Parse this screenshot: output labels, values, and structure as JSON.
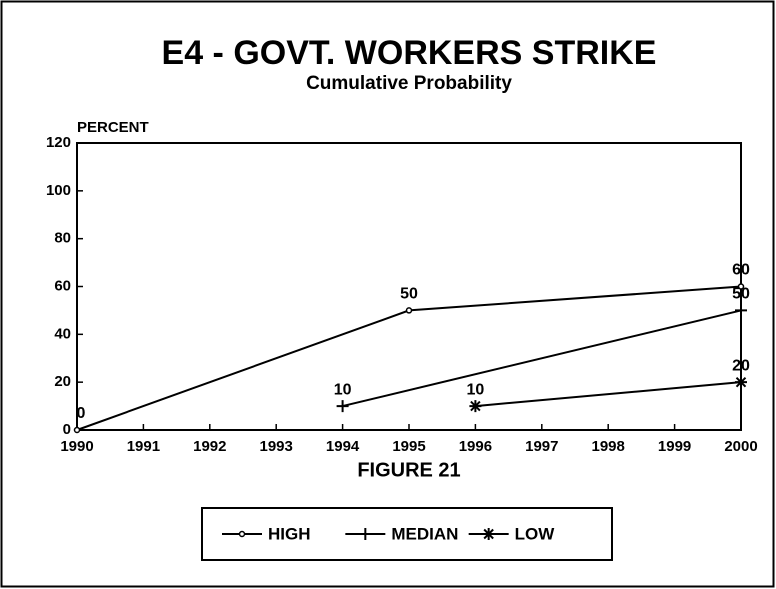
{
  "chart_data": {
    "type": "line",
    "title": "E4 - GOVT. WORKERS STRIKE",
    "subtitle": "Cumulative Probability",
    "y_label": "PERCENT",
    "x_label": "FIGURE 21",
    "xlim": [
      1990,
      2000
    ],
    "xticks": [
      1990,
      1991,
      1992,
      1993,
      1994,
      1995,
      1996,
      1997,
      1998,
      1999,
      2000
    ],
    "ylim": [
      0,
      120
    ],
    "yticks": [
      0,
      20,
      40,
      60,
      80,
      100,
      120
    ],
    "grid": false,
    "legend": "bottom",
    "series": [
      {
        "name": "HIGH",
        "color": "#000000",
        "marker": "dot",
        "x": [
          1990,
          1995,
          2000
        ],
        "values": [
          0,
          50,
          60
        ],
        "value_labels": [
          "0",
          "50",
          "60"
        ]
      },
      {
        "name": "MEDIAN",
        "color": "#000000",
        "marker": "plus",
        "x": [
          1994,
          2000
        ],
        "values": [
          10,
          50
        ],
        "value_labels": [
          "10",
          "50"
        ]
      },
      {
        "name": "LOW",
        "color": "#000000",
        "marker": "star",
        "x": [
          1996,
          2000
        ],
        "values": [
          10,
          20
        ],
        "value_labels": [
          "10",
          "20"
        ]
      }
    ]
  }
}
